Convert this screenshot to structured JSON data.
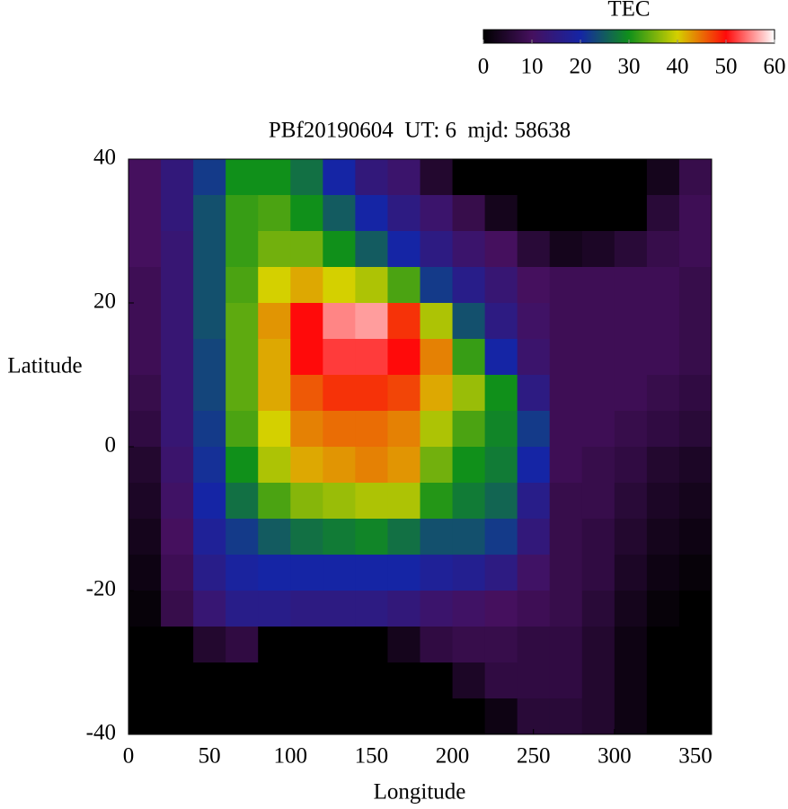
{
  "chart_data": {
    "type": "heatmap",
    "title": "PBf20190604  UT: 6  mjd: 58638",
    "xlabel": "Longitude",
    "ylabel": "Latitude",
    "xlim": [
      0,
      360
    ],
    "xticks": [
      0,
      50,
      100,
      150,
      200,
      250,
      300,
      350
    ],
    "ylim": [
      -40,
      40
    ],
    "yticks": [
      -40,
      -20,
      0,
      20,
      40
    ],
    "colorbar": {
      "title": "TEC",
      "zlim": [
        0,
        60
      ],
      "zticks": [
        0,
        10,
        20,
        30,
        40,
        50,
        60
      ],
      "colors": [
        "#000000",
        "#45105e",
        "#1525a5",
        "#10901a",
        "#d4d000",
        "#ff0a0a",
        "#ffffff"
      ]
    },
    "x": [
      10,
      30,
      50,
      70,
      90,
      110,
      130,
      150,
      170,
      190,
      210,
      230,
      250,
      270,
      290,
      310,
      330,
      350
    ],
    "y": [
      37.5,
      32.5,
      27.5,
      22.5,
      17.5,
      12.5,
      7.5,
      2.5,
      -2.5,
      -7.5,
      -12.5,
      -17.5,
      -22.5,
      -27.5,
      -32.5,
      -37.5
    ],
    "z": [
      [
        10,
        14,
        22,
        30,
        30,
        27,
        20,
        14,
        12,
        5,
        0,
        0,
        0,
        0,
        0,
        0,
        3,
        8
      ],
      [
        10,
        14,
        24,
        32,
        33,
        30,
        25,
        20,
        15,
        12,
        8,
        3,
        0,
        0,
        0,
        0,
        6,
        9
      ],
      [
        10,
        13,
        24,
        32,
        35,
        35,
        30,
        25,
        20,
        15,
        12,
        10,
        6,
        3,
        4,
        6,
        8,
        9
      ],
      [
        9,
        13,
        24,
        33,
        40,
        42,
        40,
        38,
        33,
        22,
        16,
        13,
        10,
        9,
        9,
        9,
        9,
        8
      ],
      [
        9,
        13,
        24,
        34,
        43,
        50,
        55,
        56,
        48,
        38,
        24,
        15,
        11,
        9,
        9,
        9,
        9,
        8
      ],
      [
        9,
        13,
        23,
        34,
        42,
        50,
        52,
        52,
        50,
        44,
        32,
        20,
        12,
        9,
        9,
        9,
        9,
        8
      ],
      [
        8,
        13,
        23,
        34,
        42,
        46,
        48,
        48,
        47,
        42,
        37,
        30,
        15,
        9,
        9,
        9,
        8,
        7
      ],
      [
        7,
        13,
        22,
        33,
        40,
        44,
        45,
        45,
        44,
        38,
        33,
        29,
        22,
        9,
        9,
        8,
        7,
        6
      ],
      [
        5,
        12,
        21,
        30,
        38,
        42,
        43,
        44,
        43,
        35,
        30,
        28,
        20,
        9,
        8,
        7,
        5,
        4
      ],
      [
        4,
        11,
        20,
        27,
        33,
        36,
        37,
        38,
        38,
        31,
        28,
        26,
        16,
        8,
        8,
        6,
        4,
        3
      ],
      [
        3,
        10,
        18,
        22,
        25,
        27,
        28,
        29,
        27,
        24,
        24,
        22,
        14,
        8,
        7,
        5,
        3,
        2
      ],
      [
        2,
        9,
        16,
        19,
        20,
        20,
        20,
        20,
        20,
        18,
        17,
        15,
        11,
        8,
        7,
        4,
        2,
        1
      ],
      [
        1,
        8,
        13,
        16,
        16,
        15,
        15,
        15,
        14,
        12,
        11,
        10,
        9,
        8,
        6,
        3,
        1,
        0
      ],
      [
        0,
        0,
        5,
        7,
        0,
        0,
        0,
        0,
        3,
        7,
        8,
        8,
        7,
        7,
        5,
        2,
        0,
        0
      ],
      [
        0,
        0,
        0,
        0,
        0,
        0,
        0,
        0,
        0,
        0,
        4,
        7,
        7,
        7,
        5,
        2,
        0,
        0
      ],
      [
        0,
        0,
        0,
        0,
        0,
        0,
        0,
        0,
        0,
        0,
        0,
        2,
        6,
        6,
        5,
        2,
        0,
        0
      ]
    ]
  }
}
